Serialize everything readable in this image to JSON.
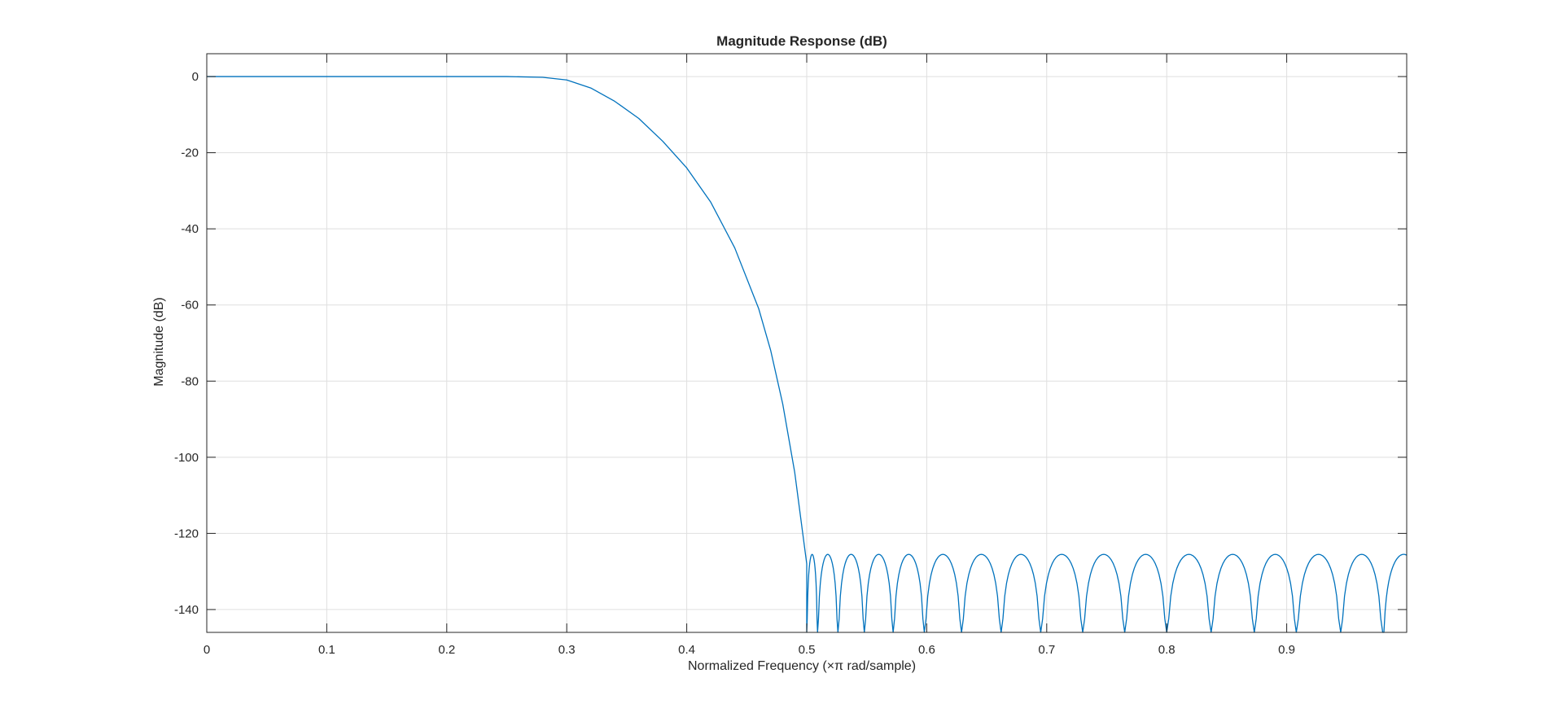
{
  "chart_data": {
    "type": "line",
    "title": "Magnitude Response (dB)",
    "xlabel": "Normalized Frequency (×π rad/sample)",
    "ylabel": "Magnitude (dB)",
    "xlim": [
      0,
      1
    ],
    "ylim": [
      -146,
      6
    ],
    "grid": true,
    "x_ticks": [
      0,
      0.1,
      0.2,
      0.3,
      0.4,
      0.5,
      0.6,
      0.7,
      0.8,
      0.9
    ],
    "x_tick_labels": [
      "0",
      "0.1",
      "0.2",
      "0.3",
      "0.4",
      "0.5",
      "0.6",
      "0.7",
      "0.8",
      "0.9"
    ],
    "y_ticks": [
      0,
      -20,
      -40,
      -60,
      -80,
      -100,
      -120,
      -140
    ],
    "y_tick_labels": [
      "0",
      "-20",
      "-40",
      "-60",
      "-80",
      "-100",
      "-120",
      "-140"
    ],
    "series": [
      {
        "color": "#0072bd",
        "passband": {
          "x": [
            0,
            0.25,
            0.28,
            0.3,
            0.32,
            0.34,
            0.36,
            0.38,
            0.4,
            0.42,
            0.44,
            0.46,
            0.47,
            0.48,
            0.49,
            0.495,
            0.5
          ],
          "y": [
            0,
            0,
            -0.2,
            -0.9,
            -3,
            -6.5,
            -11,
            -17,
            -24,
            -33,
            -45,
            -61,
            -72,
            -86,
            -104,
            -116,
            -128
          ]
        },
        "stopband_ripple": {
          "peak_db": -125.5,
          "nulls_x": [
            0.5,
            0.509,
            0.526,
            0.548,
            0.572,
            0.598,
            0.629,
            0.662,
            0.695,
            0.73,
            0.765,
            0.8,
            0.837,
            0.873,
            0.908,
            0.945,
            0.98
          ],
          "trailing_peak_x": 1.0
        }
      }
    ]
  }
}
